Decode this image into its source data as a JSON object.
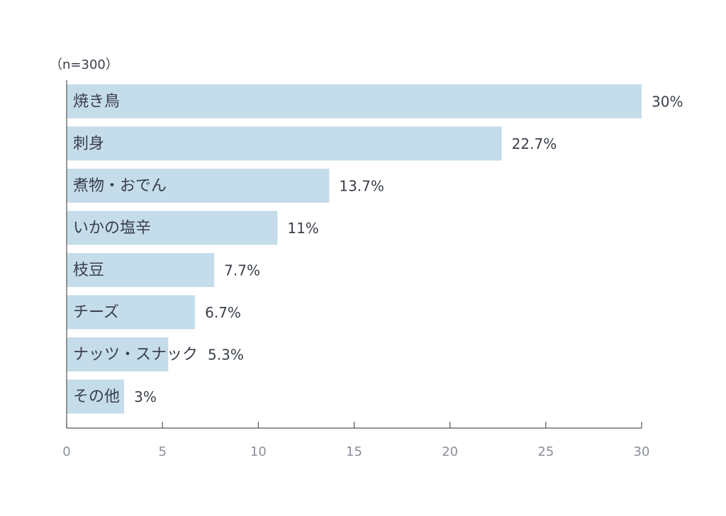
{
  "chart_data": {
    "type": "bar",
    "orientation": "horizontal",
    "note": "（n=300）",
    "categories": [
      "焼き鳥",
      "刺身",
      "煮物・おでん",
      "いかの塩辛",
      "枝豆",
      "チーズ",
      "ナッツ・スナック",
      "その他"
    ],
    "values": [
      30,
      22.7,
      13.7,
      11,
      7.7,
      6.7,
      5.3,
      3
    ],
    "value_labels": [
      "30%",
      "22.7%",
      "13.7%",
      "11%",
      "7.7%",
      "6.7%",
      "5.3%",
      "3%"
    ],
    "color": "#c5dcea",
    "xlim": [
      0,
      30
    ],
    "xticks": [
      0,
      5,
      10,
      15,
      20,
      25,
      30
    ]
  }
}
